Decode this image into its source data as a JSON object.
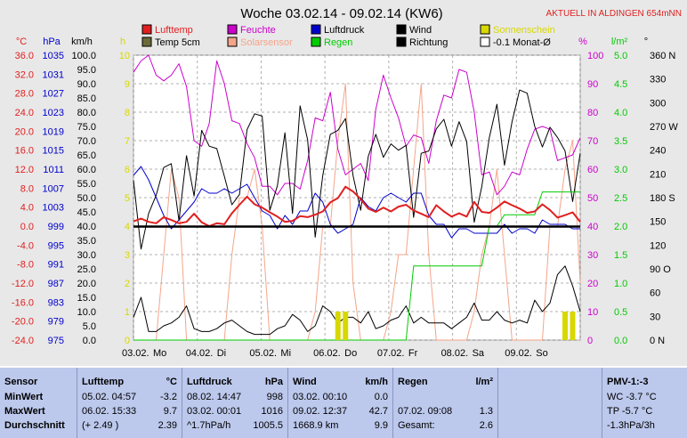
{
  "chart_data": {
    "type": "line",
    "title": "Woche 03.02.14 - 09.02.14 (KW6)",
    "subtitle": "AKTUELL IN ALDINGEN 654mNN",
    "x_labels": [
      "03.02.",
      "Mo",
      "04.02.",
      "Di",
      "05.02.",
      "Mi",
      "06.02.",
      "Do",
      "07.02.",
      "Fr",
      "08.02.",
      "Sa",
      "09.02.",
      "So"
    ],
    "legend": [
      {
        "name": "Lufttemp",
        "color": "#e02020"
      },
      {
        "name": "Temp 5cm",
        "color": "#6b6b3a"
      },
      {
        "name": "Feuchte",
        "color": "#cc00cc"
      },
      {
        "name": "Solarsensor",
        "color": "#f4a58a"
      },
      {
        "name": "Luftdruck",
        "color": "#0000cc"
      },
      {
        "name": "Regen",
        "color": "#00cc00"
      },
      {
        "name": "Wind",
        "color": "#000000"
      },
      {
        "name": "Richtung",
        "color": "#000000"
      },
      {
        "name": "Sonnenschein",
        "color": "#d8d800"
      },
      {
        "name": "-0.1 Monat-Ø",
        "color": "#000000"
      }
    ],
    "axes": {
      "temp": {
        "unit": "°C",
        "ticks": [
          "36.0",
          "32.0",
          "28.0",
          "24.0",
          "20.0",
          "16.0",
          "12.0",
          "8.0",
          "4.0",
          "0.0",
          "-4.0",
          "-8.0",
          "-12.0",
          "-16.0",
          "-20.0",
          "-24.0"
        ],
        "color": "#e02020"
      },
      "pressure": {
        "unit": "hPa",
        "ticks": [
          "1035",
          "1031",
          "1027",
          "1023",
          "1019",
          "1015",
          "1011",
          "1007",
          "1003",
          "999",
          "995",
          "991",
          "987",
          "983",
          "979",
          "975"
        ],
        "color": "#0000cc"
      },
      "wind": {
        "unit": "km/h",
        "ticks": [
          "100.0",
          "95.0",
          "90.0",
          "85.0",
          "80.0",
          "75.0",
          "70.0",
          "65.0",
          "60.0",
          "55.0",
          "50.0",
          "45.0",
          "40.0",
          "35.0",
          "30.0",
          "25.0",
          "20.0",
          "15.0",
          "10.0",
          "5.0",
          "0.0"
        ],
        "color": "#000000"
      },
      "sun": {
        "unit": "h",
        "ticks": [
          "10",
          "9",
          "8",
          "7",
          "6",
          "5",
          "4",
          "3",
          "2",
          "1",
          "0"
        ],
        "color": "#d8d800"
      },
      "humidity": {
        "unit": "%",
        "ticks": [
          "100",
          "90",
          "80",
          "70",
          "60",
          "50",
          "40",
          "30",
          "20",
          "10",
          "0"
        ],
        "color": "#cc00cc"
      },
      "rain": {
        "unit": "l/m²",
        "ticks": [
          "5.0",
          "4.5",
          "4.0",
          "3.5",
          "3.0",
          "2.5",
          "2.0",
          "1.5",
          "1.0",
          "0.5",
          "0.0"
        ],
        "color": "#00cc00"
      },
      "direction": {
        "unit": "°",
        "ticks": [
          "360 N",
          "330",
          "300",
          "270 W",
          "240",
          "210",
          "180 S",
          "150",
          "120",
          "90 O",
          "60",
          "30",
          "0 N"
        ],
        "color": "#000000"
      }
    },
    "monthly_avg_temp": -0.1,
    "series": [
      {
        "name": "Lufttemp",
        "y": [
          1.0,
          1.6,
          0.9,
          0.6,
          1.9,
          1.3,
          0.6,
          0.9,
          2.6,
          0.8,
          0.0,
          0.6,
          0.4,
          2.7,
          4.5,
          6.2,
          4.6,
          3.9,
          2.9,
          2.0,
          0.9,
          1.1,
          2.1,
          1.9,
          2.4,
          3.1,
          5.0,
          5.9,
          8.3,
          7.3,
          5.7,
          3.7,
          3.0,
          3.9,
          3.1,
          4.1,
          4.5,
          3.3,
          2.6,
          1.9,
          4.4,
          3.1,
          2.0,
          2.7,
          2.0,
          5.1,
          3.0,
          2.8,
          3.9,
          5.2,
          4.4,
          3.7,
          2.8,
          3.1,
          4.6,
          3.4,
          1.8,
          2.3,
          2.9,
          0.9
        ]
      },
      {
        "name": "Luftdruck",
        "y": [
          1012,
          1014,
          1011,
          1007,
          1003,
          1000,
          1002,
          1004,
          1006,
          1009,
          1008,
          1008,
          1009,
          1008,
          1009,
          1010,
          1007,
          1004,
          1003,
          1000,
          1003,
          1001,
          1004,
          1004,
          1008,
          1006,
          1001,
          999,
          1000,
          1001,
          1007,
          1005,
          1004,
          1007,
          1008,
          1007,
          1006,
          1008,
          1008,
          1003,
          1001,
          1001,
          998,
          1000,
          1000,
          999,
          999,
          999,
          999,
          1001,
          999,
          1000,
          1000,
          999,
          1002,
          1001,
          1001,
          1001,
          1000,
          1000
        ]
      },
      {
        "name": "Feuchte",
        "y": [
          94,
          98,
          100,
          93,
          91,
          93,
          97,
          89,
          70,
          68,
          76,
          98,
          90,
          77,
          76,
          69,
          64,
          54,
          54,
          51,
          55,
          55,
          53,
          63,
          78,
          77,
          87,
          67,
          58,
          60,
          62,
          56,
          81,
          93,
          85,
          78,
          68,
          72,
          71,
          62,
          77,
          86,
          85,
          95,
          94,
          80,
          58,
          59,
          51,
          54,
          59,
          58,
          67,
          74,
          75,
          74,
          63,
          64,
          65,
          71
        ]
      },
      {
        "name": "Solarsensor",
        "y": [
          0,
          0,
          0,
          0,
          3,
          6,
          5,
          0,
          0,
          0,
          0,
          0,
          0,
          3,
          5,
          5,
          6,
          4,
          0,
          0,
          0,
          0,
          0,
          0,
          1,
          4,
          4,
          7,
          9,
          2,
          0,
          0,
          0,
          0,
          1,
          3,
          3,
          6,
          9,
          3,
          0,
          0,
          0,
          0,
          0,
          1,
          3,
          4,
          6,
          3,
          0,
          0,
          0,
          0,
          0,
          4,
          4,
          6,
          7,
          2
        ]
      },
      {
        "name": "Regen",
        "y": [
          0,
          0,
          0,
          0,
          0,
          0,
          0,
          0,
          0,
          0,
          0,
          0,
          0,
          0,
          0,
          0,
          0,
          0,
          0,
          0,
          0,
          0,
          0,
          0,
          0,
          0,
          0,
          0,
          0,
          0,
          0,
          0,
          0,
          0,
          0,
          0,
          0,
          1.3,
          1.3,
          1.3,
          1.3,
          1.3,
          1.3,
          1.3,
          1.3,
          1.3,
          1.3,
          2.0,
          2.0,
          2.2,
          2.2,
          2.2,
          2.2,
          2.2,
          2.6,
          2.6,
          2.6,
          2.6,
          2.6,
          2.6
        ]
      },
      {
        "name": "Wind",
        "y": [
          8,
          15,
          3,
          3,
          5,
          6,
          8,
          12,
          4,
          3,
          3,
          4,
          6,
          7,
          5,
          3,
          2,
          2,
          2,
          4,
          5,
          9,
          7,
          3,
          5,
          12,
          10,
          6,
          8,
          8,
          6,
          10,
          4,
          5,
          7,
          8,
          12,
          6,
          8,
          6,
          6,
          6,
          4,
          6,
          8,
          13,
          7,
          7,
          10,
          7,
          6,
          7,
          6,
          14,
          10,
          13,
          23,
          26,
          19,
          10
        ]
      },
      {
        "name": "Richtung",
        "y": [
          202,
          115,
          160,
          183,
          218,
          223,
          151,
          233,
          182,
          265,
          245,
          242,
          207,
          171,
          184,
          266,
          286,
          283,
          164,
          195,
          262,
          160,
          296,
          253,
          130,
          208,
          260,
          265,
          280,
          208,
          164,
          232,
          260,
          231,
          248,
          240,
          246,
          155,
          236,
          239,
          267,
          279,
          245,
          276,
          251,
          149,
          194,
          256,
          298,
          221,
          276,
          316,
          312,
          270,
          244,
          269,
          256,
          239,
          175,
          236
        ]
      },
      {
        "name": "Sonnenschein",
        "y": [
          0,
          0,
          0,
          0,
          0,
          0,
          0,
          0,
          0,
          0,
          0,
          0,
          0,
          0,
          0,
          0,
          0,
          0,
          0,
          0,
          0,
          0,
          0,
          0,
          0,
          0,
          0,
          1,
          1,
          0,
          0,
          0,
          0,
          0,
          0,
          0,
          0,
          0,
          0,
          0,
          0,
          0,
          0,
          0,
          0,
          0,
          0,
          0,
          0,
          0,
          0,
          0,
          0,
          0,
          0,
          0,
          0,
          1,
          1,
          0
        ]
      }
    ]
  },
  "stats": {
    "sensor": {
      "header": "Sensor",
      "rows": [
        "MinWert",
        "MaxWert",
        "Durchschnitt"
      ]
    },
    "lufttemp": {
      "header": "Lufttemp",
      "unit": "°C",
      "rows": [
        [
          "05.02.  04:57",
          "-3.2"
        ],
        [
          "06.02.  15:33",
          "9.7"
        ],
        [
          "(+ 2.49 )",
          "2.39"
        ]
      ]
    },
    "luftdruck": {
      "header": "Luftdruck",
      "unit": "hPa",
      "rows": [
        [
          "08.02.  14:47",
          "998"
        ],
        [
          "03.02.  00:01",
          "1016"
        ],
        [
          "^1.7hPa/h",
          "1005.5"
        ]
      ]
    },
    "wind": {
      "header": "Wind",
      "unit": "km/h",
      "rows": [
        [
          "03.02.  00:10",
          "0.0"
        ],
        [
          "09.02.  12:37",
          "42.7"
        ],
        [
          "1668.9 km",
          "9.9"
        ]
      ]
    },
    "regen": {
      "header": "Regen",
      "unit": "l/m²",
      "rows": [
        [
          "",
          ""
        ],
        [
          "07.02.  09:08",
          "1.3"
        ],
        [
          "Gesamt:",
          "2.6"
        ]
      ]
    },
    "pmv": {
      "header": "PMV-1:-3",
      "rows": [
        "WC -3.7 °C",
        "TP -5.7 °C",
        "-1.3hPa/3h"
      ]
    }
  }
}
